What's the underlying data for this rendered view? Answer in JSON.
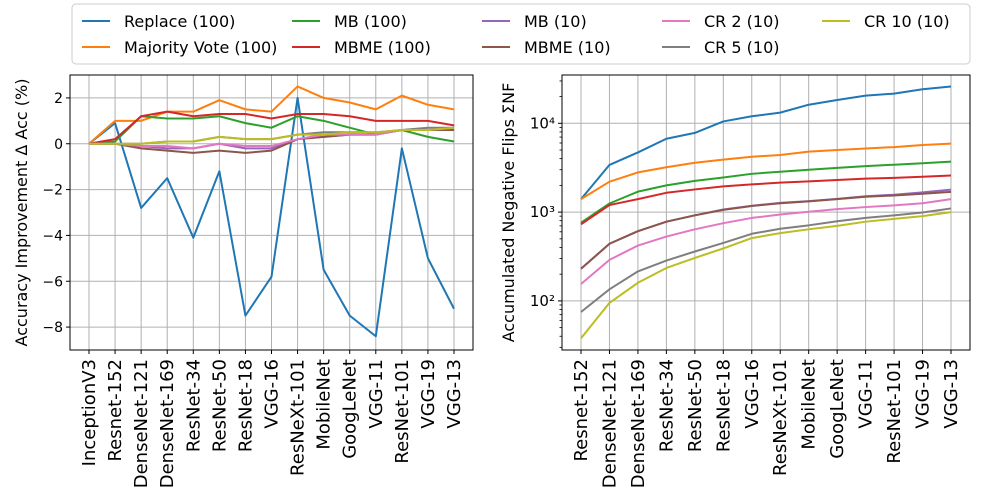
{
  "chart_data": [
    {
      "type": "line",
      "title": "",
      "ylabel": "Accuracy Improvement Δ Acc (%)",
      "xlabel": "",
      "yscale": "linear",
      "ylim": [
        -9,
        3
      ],
      "yticks": [
        {
          "value": 2,
          "label": "2"
        },
        {
          "value": 0,
          "label": "0"
        },
        {
          "value": -2,
          "label": "−2"
        },
        {
          "value": -4,
          "label": "−4"
        },
        {
          "value": -6,
          "label": "−6"
        },
        {
          "value": -8,
          "label": "−8"
        }
      ],
      "grid": true,
      "categories": [
        "InceptionV3",
        "Resnet-152",
        "DenseNet-121",
        "DenseNet-169",
        "ResNet-34",
        "ResNet-50",
        "ResNet-18",
        "VGG-16",
        "ResNeXt-101",
        "MobileNet",
        "GoogLeNet",
        "VGG-11",
        "ResNet-101",
        "VGG-19",
        "VGG-13"
      ],
      "series": [
        {
          "name": "Replace (100)",
          "color": "#1f77b4",
          "values": [
            0,
            0.9,
            -2.8,
            -1.5,
            -4.1,
            -1.2,
            -7.5,
            -5.8,
            2.0,
            -5.5,
            -7.5,
            -8.4,
            -0.2,
            -5.0,
            -7.2
          ]
        },
        {
          "name": "Majority Vote (100)",
          "color": "#ff7f0e",
          "values": [
            0,
            1.0,
            1.0,
            1.4,
            1.4,
            1.9,
            1.5,
            1.4,
            2.5,
            2.0,
            1.8,
            1.5,
            2.1,
            1.7,
            1.5
          ]
        },
        {
          "name": "MB (100)",
          "color": "#2ca02c",
          "values": [
            0,
            0.1,
            1.2,
            1.1,
            1.1,
            1.2,
            0.9,
            0.7,
            1.2,
            1.0,
            0.7,
            0.4,
            0.6,
            0.3,
            0.1
          ]
        },
        {
          "name": "MBME (100)",
          "color": "#d62728",
          "values": [
            0,
            0.2,
            1.2,
            1.4,
            1.2,
            1.3,
            1.3,
            1.1,
            1.3,
            1.3,
            1.2,
            1.0,
            1.0,
            1.0,
            0.8
          ]
        },
        {
          "name": "MB (10)",
          "color": "#9467bd",
          "values": [
            0,
            0.0,
            -0.1,
            -0.2,
            -0.2,
            0.0,
            -0.2,
            -0.2,
            0.2,
            0.3,
            0.4,
            0.4,
            0.6,
            0.6,
            0.6
          ]
        },
        {
          "name": "MBME (10)",
          "color": "#8c564b",
          "values": [
            0,
            0.0,
            -0.2,
            -0.3,
            -0.4,
            -0.3,
            -0.4,
            -0.3,
            0.2,
            0.3,
            0.4,
            0.4,
            0.6,
            0.6,
            0.6
          ]
        },
        {
          "name": "CR 2 (10)",
          "color": "#e377c2",
          "values": [
            0,
            0.0,
            -0.1,
            -0.1,
            -0.2,
            0.0,
            -0.1,
            -0.1,
            0.2,
            0.4,
            0.4,
            0.4,
            0.6,
            0.6,
            0.7
          ]
        },
        {
          "name": "CR 5 (10)",
          "color": "#7f7f7f",
          "values": [
            0,
            0.0,
            0.0,
            0.1,
            0.1,
            0.3,
            0.2,
            0.2,
            0.4,
            0.5,
            0.5,
            0.5,
            0.6,
            0.7,
            0.7
          ]
        },
        {
          "name": "CR 10 (10)",
          "color": "#bcbd22",
          "values": [
            0,
            0.0,
            0.0,
            0.1,
            0.1,
            0.3,
            0.2,
            0.2,
            0.4,
            0.4,
            0.5,
            0.5,
            0.6,
            0.6,
            0.7
          ]
        }
      ]
    },
    {
      "type": "line",
      "title": "",
      "ylabel": "Accumulated Negative Flips ΣNF",
      "xlabel": "",
      "yscale": "log",
      "ylim": [
        28,
        35000
      ],
      "yticks": [
        {
          "value": 100,
          "label": "10²"
        },
        {
          "value": 1000,
          "label": "10³"
        },
        {
          "value": 10000,
          "label": "10⁴"
        }
      ],
      "grid": true,
      "categories": [
        "Resnet-152",
        "DenseNet-121",
        "DenseNet-169",
        "ResNet-34",
        "ResNet-50",
        "ResNet-18",
        "VGG-16",
        "ResNeXt-101",
        "MobileNet",
        "GoogLeNet",
        "VGG-11",
        "ResNet-101",
        "VGG-19",
        "VGG-13"
      ],
      "series": [
        {
          "name": "Replace (100)",
          "color": "#1f77b4",
          "values": [
            1400,
            3400,
            4700,
            6700,
            7800,
            10500,
            12000,
            13200,
            16200,
            18300,
            20500,
            21600,
            24200,
            26000
          ]
        },
        {
          "name": "Majority Vote (100)",
          "color": "#ff7f0e",
          "values": [
            1400,
            2200,
            2800,
            3200,
            3600,
            3900,
            4200,
            4400,
            4800,
            5000,
            5200,
            5400,
            5700,
            5900
          ]
        },
        {
          "name": "MB (100)",
          "color": "#2ca02c",
          "values": [
            760,
            1250,
            1700,
            2000,
            2250,
            2450,
            2700,
            2850,
            3000,
            3150,
            3300,
            3420,
            3550,
            3700
          ]
        },
        {
          "name": "MBME (100)",
          "color": "#d62728",
          "values": [
            730,
            1200,
            1400,
            1650,
            1800,
            1950,
            2050,
            2150,
            2220,
            2300,
            2380,
            2430,
            2500,
            2580
          ]
        },
        {
          "name": "MB (10)",
          "color": "#9467bd",
          "values": [
            230,
            440,
            610,
            780,
            920,
            1070,
            1180,
            1270,
            1330,
            1410,
            1510,
            1570,
            1670,
            1790
          ]
        },
        {
          "name": "MBME (10)",
          "color": "#8c564b",
          "values": [
            230,
            440,
            610,
            780,
            920,
            1060,
            1170,
            1260,
            1320,
            1400,
            1490,
            1540,
            1610,
            1690
          ]
        },
        {
          "name": "CR 2 (10)",
          "color": "#e377c2",
          "values": [
            155,
            290,
            420,
            530,
            640,
            750,
            860,
            940,
            1010,
            1080,
            1140,
            1190,
            1260,
            1400
          ]
        },
        {
          "name": "CR 5 (10)",
          "color": "#7f7f7f",
          "values": [
            75,
            135,
            215,
            285,
            360,
            450,
            570,
            650,
            710,
            790,
            860,
            920,
            990,
            1100
          ]
        },
        {
          "name": "CR 10 (10)",
          "color": "#bcbd22",
          "values": [
            38,
            95,
            160,
            235,
            305,
            390,
            510,
            580,
            640,
            700,
            780,
            840,
            900,
            1000
          ]
        }
      ]
    }
  ],
  "legend": {
    "placement": "top",
    "columns": 5,
    "entries": [
      {
        "label": "Replace (100)",
        "color": "#1f77b4"
      },
      {
        "label": "Majority Vote (100)",
        "color": "#ff7f0e"
      },
      {
        "label": "MB (100)",
        "color": "#2ca02c"
      },
      {
        "label": "MBME (100)",
        "color": "#d62728"
      },
      {
        "label": "MB (10)",
        "color": "#9467bd"
      },
      {
        "label": "MBME (10)",
        "color": "#8c564b"
      },
      {
        "label": "CR 2 (10)",
        "color": "#e377c2"
      },
      {
        "label": "CR 5 (10)",
        "color": "#7f7f7f"
      },
      {
        "label": "CR 10 (10)",
        "color": "#bcbd22"
      }
    ]
  }
}
